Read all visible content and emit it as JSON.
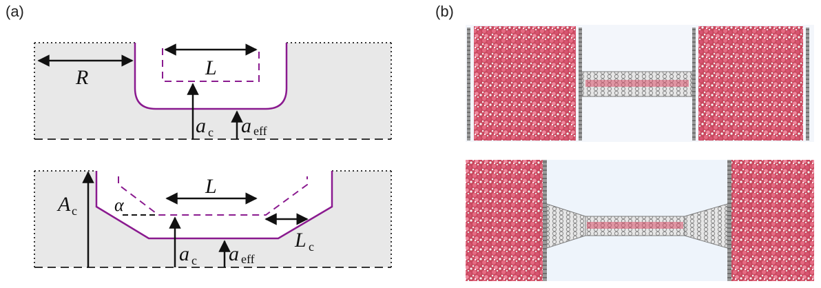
{
  "panel_a": {
    "label": "(a)",
    "top": {
      "R": "R",
      "L": "L",
      "a": "a",
      "c": "c",
      "eff": "eff"
    },
    "bottom": {
      "A": "A",
      "Ac_sub": "c",
      "alpha": "α",
      "L": "L",
      "Lc": "L",
      "Lc_sub": "c",
      "a": "a",
      "c": "c",
      "eff": "eff"
    }
  },
  "panel_b": {
    "label": "(b)"
  },
  "colors": {
    "reservoir_fill": "#e8e8e8",
    "contour": "#8a1a8f",
    "water_red": "#d9506a",
    "tube_gray": "#8f8f8f",
    "sky": "#eef4fb"
  }
}
